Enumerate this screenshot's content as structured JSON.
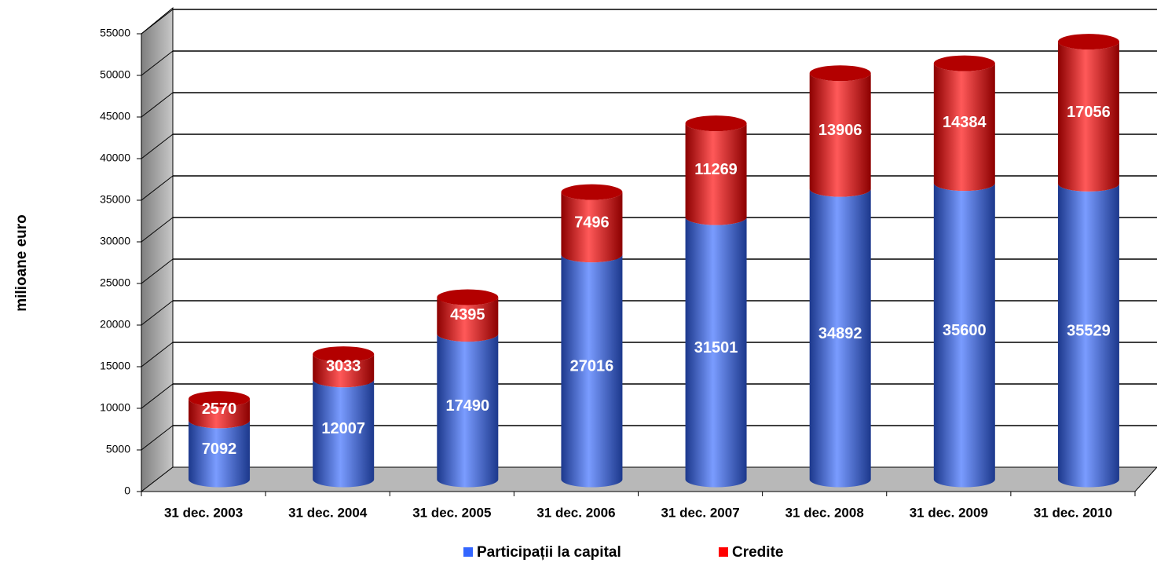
{
  "chart_data": {
    "type": "bar",
    "stacked": true,
    "y_label": "milioane euro",
    "categories": [
      "31 dec. 2003",
      "31 dec. 2004",
      "31 dec. 2005",
      "31 dec. 2006",
      "31 dec. 2007",
      "31 dec. 2008",
      "31 dec. 2009",
      "31 dec. 2010"
    ],
    "series": [
      {
        "name": "Participații la capital",
        "color": "#3366ff",
        "values": [
          7092,
          12007,
          17490,
          27016,
          31501,
          34892,
          35600,
          35529
        ]
      },
      {
        "name": "Credite",
        "color": "#ff0000",
        "values": [
          2570,
          3033,
          4395,
          7496,
          11269,
          13906,
          14384,
          17056
        ]
      }
    ],
    "ylim": [
      0,
      55000
    ],
    "yticks": [
      0,
      5000,
      10000,
      15000,
      20000,
      25000,
      30000,
      35000,
      40000,
      45000,
      50000,
      55000
    ],
    "grid": true
  }
}
